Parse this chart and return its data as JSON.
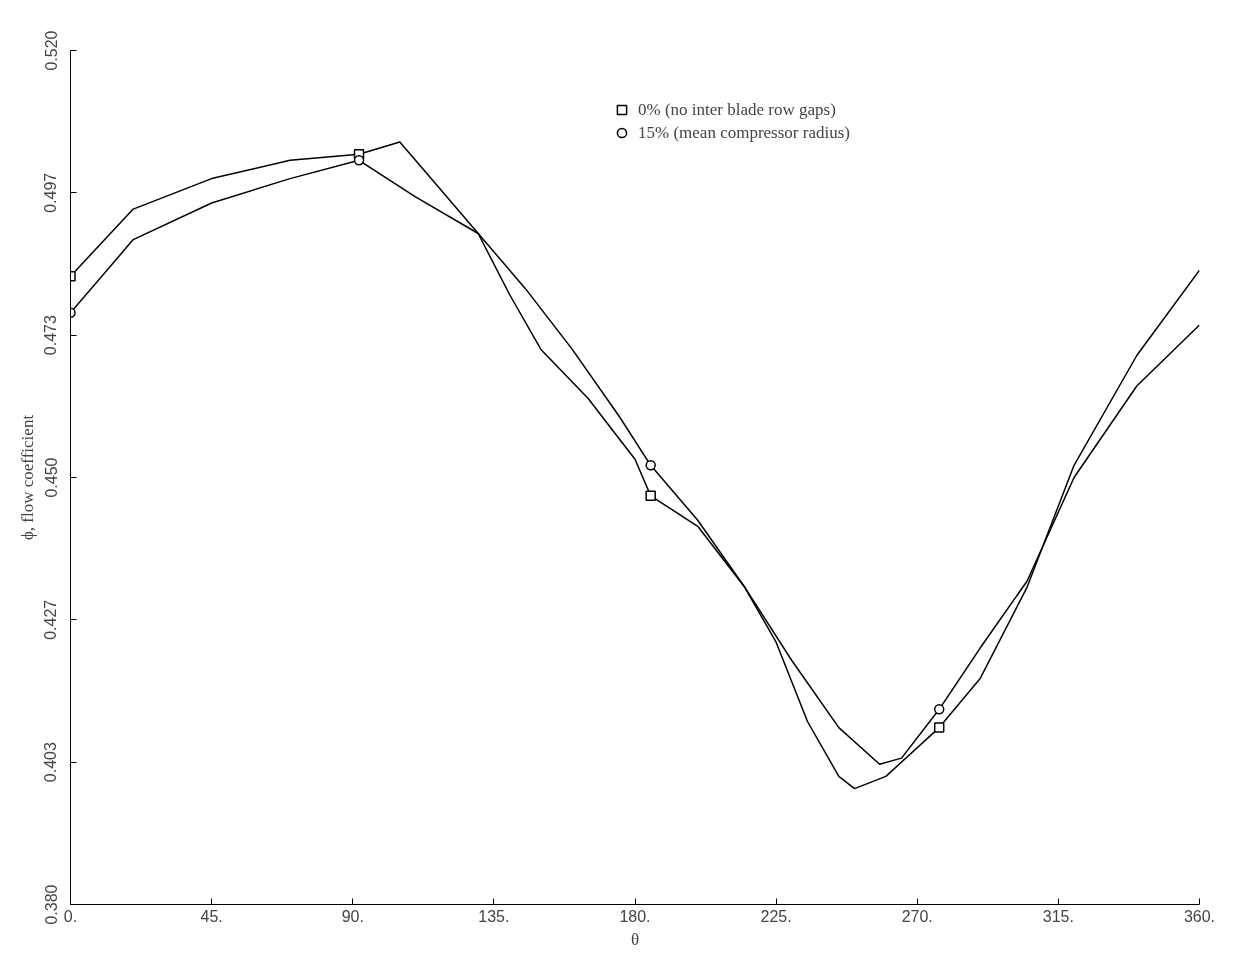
{
  "chart_data": {
    "type": "line",
    "xlabel": "θ",
    "ylabel": "ϕ, flow coefficient",
    "x": [
      0,
      20,
      45,
      70,
      92,
      105,
      115,
      130,
      140,
      150,
      165,
      180,
      185,
      200,
      215,
      225,
      235,
      245,
      250,
      260,
      277,
      290,
      305,
      320,
      340,
      360
    ],
    "series": [
      {
        "color": "#000000",
        "values": [
          0.483,
          0.494,
          0.499,
          0.502,
          0.503,
          0.505,
          0.499,
          0.49,
          0.48,
          0.471,
          0.463,
          0.453,
          0.447,
          0.442,
          0.432,
          0.423,
          0.41,
          0.401,
          0.399,
          0.401,
          0.409,
          0.417,
          0.432,
          0.452,
          0.47,
          0.484
        ]
      },
      {
        "color": "#000000",
        "x": [
          0,
          20,
          45,
          70,
          92,
          110,
          130,
          145,
          160,
          175,
          185,
          200,
          215,
          230,
          245,
          258,
          265,
          277,
          290,
          305,
          320,
          340,
          360
        ],
        "values": [
          0.477,
          0.489,
          0.495,
          0.499,
          0.502,
          0.496,
          0.49,
          0.481,
          0.471,
          0.46,
          0.452,
          0.443,
          0.432,
          0.42,
          0.409,
          0.403,
          0.404,
          0.412,
          0.422,
          0.433,
          0.45,
          0.465,
          0.475
        ]
      },
      {
        "type": "scatter",
        "name": "0% (no inter blade row gaps)",
        "marker": "square",
        "color": "#000000",
        "x": [
          0,
          92,
          185,
          277
        ],
        "values": [
          0.483,
          0.503,
          0.447,
          0.409
        ]
      },
      {
        "type": "scatter",
        "name": "15% (mean compressor radius)",
        "marker": "circle",
        "color": "#000000",
        "x": [
          0,
          92,
          185,
          277
        ],
        "values": [
          0.477,
          0.502,
          0.452,
          0.412
        ]
      }
    ],
    "xlim": [
      0,
      360
    ],
    "ylim": [
      0.38,
      0.52
    ],
    "xticks": [
      {
        "value": 0,
        "label": "0."
      },
      {
        "value": 45,
        "label": "45."
      },
      {
        "value": 90,
        "label": "90."
      },
      {
        "value": 135,
        "label": "135."
      },
      {
        "value": 180,
        "label": "180."
      },
      {
        "value": 225,
        "label": "225."
      },
      {
        "value": 270,
        "label": "270."
      },
      {
        "value": 315,
        "label": "315."
      },
      {
        "value": 360,
        "label": "360."
      }
    ],
    "yticks": [
      {
        "value": 0.38,
        "label": "0.380"
      },
      {
        "value": 0.40333,
        "label": "0.403"
      },
      {
        "value": 0.42667,
        "label": "0.427"
      },
      {
        "value": 0.45,
        "label": "0.450"
      },
      {
        "value": 0.47333,
        "label": "0.473"
      },
      {
        "value": 0.49667,
        "label": "0.497"
      },
      {
        "value": 0.52,
        "label": "0.520"
      }
    ],
    "grid": false,
    "legend": "top"
  }
}
